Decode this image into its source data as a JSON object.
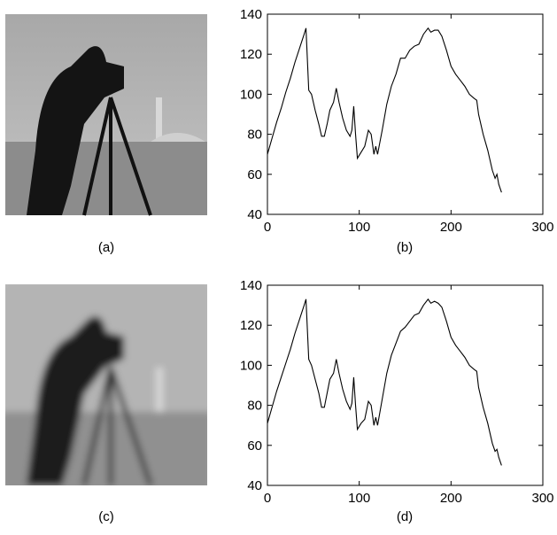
{
  "captions": [
    "(a)",
    "(b)",
    "(c)",
    "(d)"
  ],
  "chart_data": [
    {
      "type": "line",
      "color": "#000000",
      "xlim": [
        0,
        300
      ],
      "ylim": [
        40,
        140
      ],
      "xticks": [
        0,
        100,
        200,
        300
      ],
      "yticks": [
        40,
        60,
        80,
        100,
        120,
        140
      ],
      "x": [
        0,
        5,
        10,
        15,
        20,
        25,
        30,
        35,
        40,
        42,
        45,
        48,
        52,
        56,
        59,
        62,
        65,
        68,
        72,
        75,
        78,
        82,
        86,
        90,
        92,
        94,
        96,
        98,
        102,
        106,
        110,
        113,
        116,
        118,
        120,
        125,
        130,
        135,
        140,
        145,
        150,
        155,
        160,
        165,
        170,
        175,
        178,
        182,
        186,
        190,
        195,
        200,
        205,
        210,
        215,
        220,
        225,
        228,
        230,
        235,
        240,
        245,
        248,
        250,
        252,
        255
      ],
      "values": [
        70,
        78,
        86,
        93,
        101,
        108,
        116,
        123,
        130,
        133,
        102,
        100,
        92,
        85,
        79,
        79,
        85,
        92,
        96,
        103,
        96,
        88,
        82,
        79,
        82,
        94,
        80,
        68,
        71,
        74,
        82,
        80,
        70,
        74,
        70,
        82,
        95,
        104,
        110,
        118,
        118,
        122,
        124,
        125,
        130,
        133,
        131,
        132,
        132,
        129,
        122,
        114,
        110,
        107,
        104,
        100,
        98,
        97,
        90,
        80,
        72,
        62,
        58,
        60,
        55,
        51
      ]
    },
    {
      "type": "line",
      "color": "#000000",
      "xlim": [
        0,
        300
      ],
      "ylim": [
        40,
        140
      ],
      "xticks": [
        0,
        100,
        200,
        300
      ],
      "yticks": [
        40,
        60,
        80,
        100,
        120,
        140
      ],
      "x": [
        0,
        5,
        10,
        15,
        20,
        25,
        30,
        35,
        40,
        42,
        45,
        48,
        52,
        56,
        59,
        62,
        65,
        68,
        72,
        75,
        78,
        82,
        86,
        90,
        92,
        94,
        96,
        98,
        102,
        106,
        110,
        113,
        116,
        118,
        120,
        125,
        130,
        135,
        140,
        145,
        150,
        155,
        160,
        165,
        170,
        175,
        178,
        182,
        186,
        190,
        195,
        200,
        205,
        210,
        215,
        220,
        225,
        228,
        230,
        235,
        240,
        245,
        248,
        250,
        252,
        255
      ],
      "values": [
        71,
        79,
        87,
        94,
        101,
        108,
        116,
        123,
        130,
        133,
        103,
        100,
        93,
        86,
        79,
        79,
        86,
        93,
        96,
        103,
        96,
        88,
        82,
        78,
        81,
        94,
        80,
        68,
        71,
        73,
        82,
        80,
        70,
        74,
        70,
        83,
        96,
        105,
        111,
        117,
        119,
        122,
        125,
        126,
        130,
        133,
        131,
        132,
        131,
        129,
        122,
        114,
        110,
        107,
        104,
        100,
        98,
        97,
        89,
        79,
        71,
        61,
        57,
        58,
        54,
        50
      ]
    }
  ]
}
